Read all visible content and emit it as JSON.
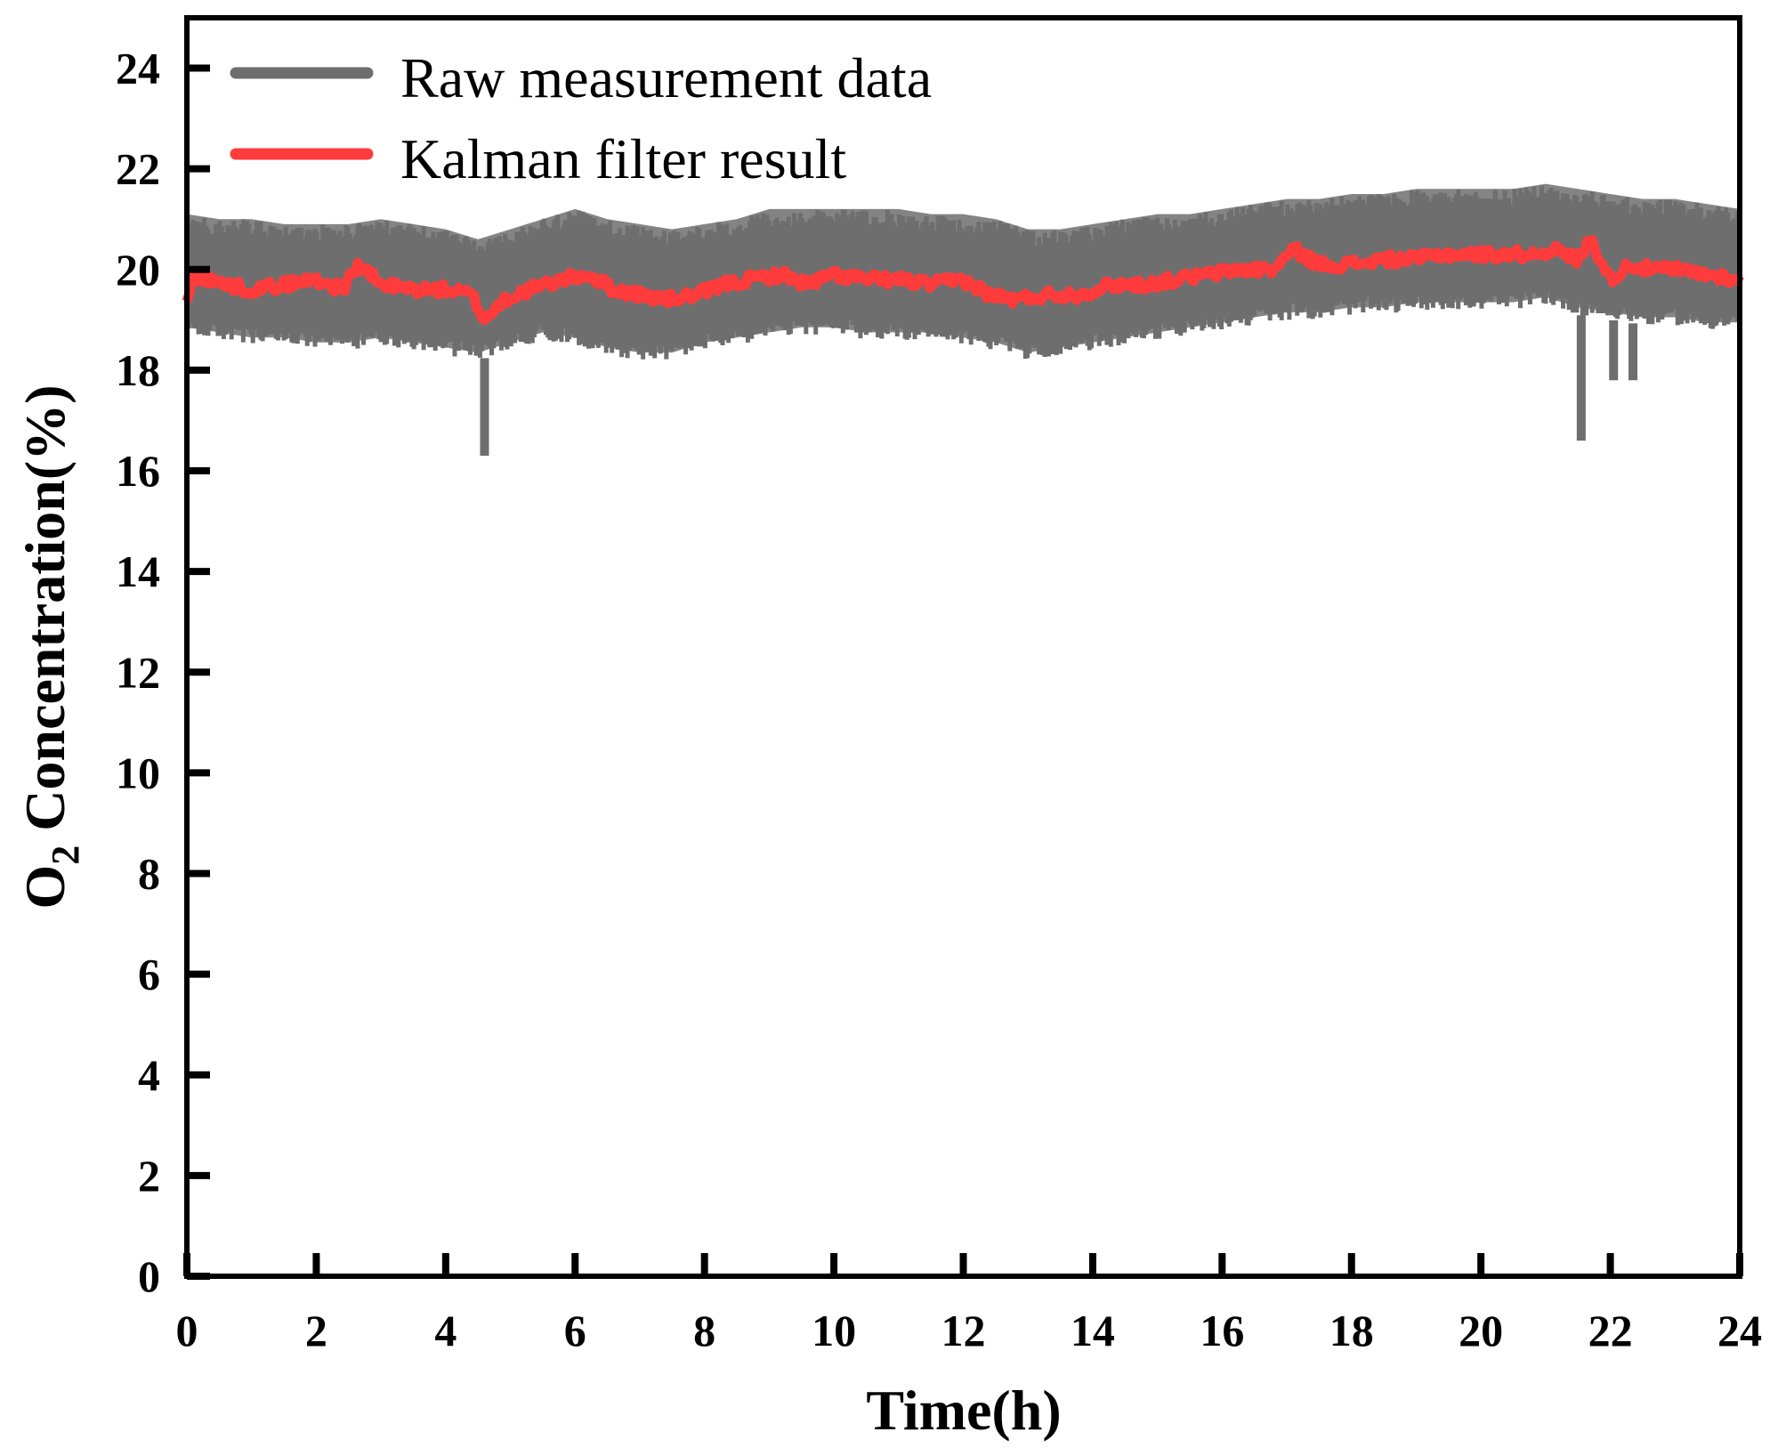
{
  "chart_data": {
    "type": "line",
    "title": "",
    "xlabel": "Time(h)",
    "ylabel": {
      "prefix": "O",
      "subscript": "2",
      "suffix": " Concentration(%)"
    },
    "xlim": [
      0,
      24
    ],
    "ylim": [
      0,
      25
    ],
    "x_ticks": [
      0,
      2,
      4,
      6,
      8,
      10,
      12,
      14,
      16,
      18,
      20,
      22,
      24
    ],
    "y_ticks": [
      0,
      2,
      4,
      6,
      8,
      10,
      12,
      14,
      16,
      18,
      20,
      22,
      24
    ],
    "grid": false,
    "legend_position": "top-left",
    "series": [
      {
        "name": "Raw measurement data",
        "color": "#6e6e6e",
        "style": "band",
        "x": [
          0,
          0.5,
          1,
          1.5,
          2,
          2.5,
          3,
          3.5,
          4,
          4.5,
          5,
          5.5,
          6,
          6.5,
          7,
          7.5,
          8,
          8.5,
          9,
          9.5,
          10,
          10.5,
          11,
          11.5,
          12,
          12.5,
          13,
          13.5,
          14,
          14.5,
          15,
          15.5,
          16,
          16.5,
          17,
          17.5,
          18,
          18.5,
          19,
          19.5,
          20,
          20.5,
          21,
          21.5,
          22,
          22.5,
          23,
          23.5,
          24
        ],
        "upper": [
          21.1,
          21.0,
          21.0,
          20.9,
          20.9,
          20.9,
          21.0,
          20.9,
          20.8,
          20.6,
          20.8,
          21.0,
          21.2,
          21.0,
          20.9,
          20.8,
          20.9,
          21.0,
          21.2,
          21.2,
          21.2,
          21.2,
          21.2,
          21.1,
          21.1,
          21.0,
          20.8,
          20.8,
          20.9,
          21.0,
          21.1,
          21.1,
          21.2,
          21.3,
          21.4,
          21.4,
          21.5,
          21.5,
          21.6,
          21.6,
          21.6,
          21.6,
          21.7,
          21.6,
          21.5,
          21.4,
          21.4,
          21.3,
          21.2
        ],
        "lower": [
          18.7,
          18.6,
          18.5,
          18.5,
          18.4,
          18.4,
          18.5,
          18.4,
          18.3,
          18.2,
          18.4,
          18.6,
          18.5,
          18.3,
          18.2,
          18.2,
          18.4,
          18.5,
          18.6,
          18.7,
          18.7,
          18.6,
          18.6,
          18.6,
          18.5,
          18.4,
          18.2,
          18.3,
          18.4,
          18.5,
          18.6,
          18.7,
          18.8,
          18.9,
          19.0,
          19.0,
          19.1,
          19.1,
          19.2,
          19.2,
          19.2,
          19.2,
          19.3,
          19.1,
          19.0,
          18.9,
          18.9,
          18.8,
          18.8
        ],
        "spikes": [
          {
            "x": 4.6,
            "value": 16.3
          },
          {
            "x": 21.55,
            "value": 16.6
          },
          {
            "x": 22.05,
            "value": 17.8
          },
          {
            "x": 22.35,
            "value": 17.8
          }
        ]
      },
      {
        "name": "Kalman filter result",
        "color": "#ff3b3b",
        "style": "line",
        "x": [
          0,
          0.1,
          0.3,
          0.6,
          1.0,
          1.5,
          2.0,
          2.4,
          2.65,
          3.0,
          3.5,
          4.0,
          4.4,
          4.6,
          4.9,
          5.3,
          5.8,
          6.2,
          6.6,
          7.0,
          7.4,
          7.9,
          8.3,
          8.7,
          9.2,
          9.6,
          10.0,
          10.5,
          11.0,
          11.5,
          12.0,
          12.4,
          12.8,
          13.3,
          13.8,
          14.3,
          14.8,
          15.3,
          15.8,
          16.3,
          16.8,
          17.1,
          17.5,
          18.0,
          18.5,
          19.0,
          19.4,
          19.8,
          20.3,
          20.8,
          21.1,
          21.5,
          21.7,
          22.0,
          22.3,
          22.6,
          23.0,
          23.5,
          24.0
        ],
        "values": [
          19.3,
          19.9,
          19.8,
          19.7,
          19.6,
          19.7,
          19.8,
          19.6,
          20.1,
          19.7,
          19.6,
          19.6,
          19.5,
          19.0,
          19.4,
          19.6,
          19.8,
          19.9,
          19.6,
          19.5,
          19.4,
          19.5,
          19.7,
          19.8,
          19.9,
          19.7,
          19.9,
          19.8,
          19.8,
          19.7,
          19.8,
          19.5,
          19.4,
          19.5,
          19.5,
          19.7,
          19.7,
          19.8,
          19.9,
          20.0,
          20.0,
          20.4,
          20.1,
          20.1,
          20.2,
          20.2,
          20.3,
          20.3,
          20.3,
          20.3,
          20.4,
          20.2,
          20.6,
          19.8,
          20.1,
          20.0,
          20.0,
          19.9,
          19.8
        ]
      }
    ]
  }
}
